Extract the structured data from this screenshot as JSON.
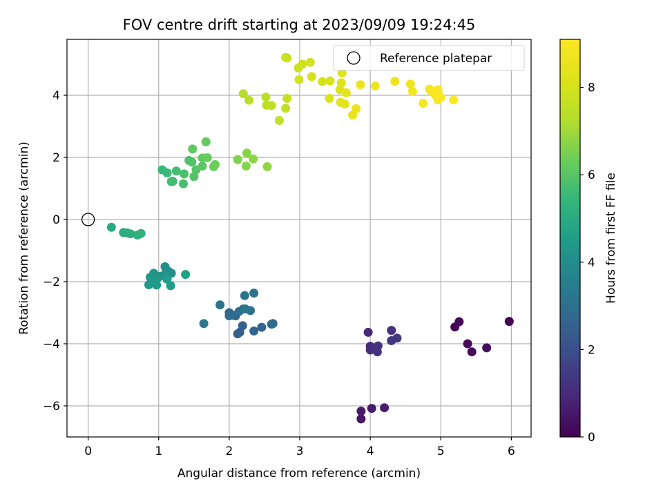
{
  "chart_data": {
    "type": "scatter",
    "title": "FOV centre drift starting at 2023/09/09 19:24:45",
    "xlabel": "Angular distance from reference (arcmin)",
    "ylabel": "Rotation from reference (arcmin)",
    "xlim": [
      -0.3,
      6.28
    ],
    "ylim": [
      -7.0,
      5.8
    ],
    "xticks": [
      0,
      1,
      2,
      3,
      4,
      5,
      6
    ],
    "yticks": [
      -6,
      -4,
      -2,
      0,
      2,
      4
    ],
    "xtick_labels": [
      "0",
      "1",
      "2",
      "3",
      "4",
      "5",
      "6"
    ],
    "ytick_labels": [
      "−6",
      "−4",
      "−2",
      "0",
      "2",
      "4"
    ],
    "grid": true,
    "legend": {
      "location": "upper right",
      "entries": [
        "Reference platepar"
      ]
    },
    "reference_point": {
      "x": 0,
      "y": 0
    },
    "colorbar": {
      "label": "Hours from first FF file",
      "colormap": "viridis",
      "range": [
        0,
        9.1
      ],
      "ticks": [
        0,
        2,
        4,
        6,
        8
      ],
      "tick_labels": [
        "0",
        "2",
        "4",
        "6",
        "8"
      ]
    },
    "points": [
      {
        "x": 5.97,
        "y": -3.28,
        "c": 0.05
      },
      {
        "x": 5.2,
        "y": -3.46,
        "c": 0.1
      },
      {
        "x": 5.26,
        "y": -3.29,
        "c": 0.15
      },
      {
        "x": 5.38,
        "y": -4.0,
        "c": 0.2
      },
      {
        "x": 5.44,
        "y": -4.26,
        "c": 0.25
      },
      {
        "x": 5.65,
        "y": -4.13,
        "c": 0.3
      },
      {
        "x": 3.87,
        "y": -6.42,
        "c": 0.5
      },
      {
        "x": 3.87,
        "y": -6.17,
        "c": 0.55
      },
      {
        "x": 4.02,
        "y": -6.08,
        "c": 0.6
      },
      {
        "x": 4.2,
        "y": -6.06,
        "c": 0.65
      },
      {
        "x": 3.97,
        "y": -3.63,
        "c": 1.0
      },
      {
        "x": 4.0,
        "y": -4.08,
        "c": 1.05
      },
      {
        "x": 4.0,
        "y": -4.2,
        "c": 1.1
      },
      {
        "x": 4.1,
        "y": -4.26,
        "c": 1.15
      },
      {
        "x": 4.11,
        "y": -4.07,
        "c": 1.2
      },
      {
        "x": 4.3,
        "y": -3.57,
        "c": 1.25
      },
      {
        "x": 4.3,
        "y": -3.9,
        "c": 1.3
      },
      {
        "x": 4.38,
        "y": -3.82,
        "c": 1.35
      },
      {
        "x": 2.09,
        "y": -3.1,
        "c": 2.4
      },
      {
        "x": 2.12,
        "y": -3.68,
        "c": 2.45
      },
      {
        "x": 2.15,
        "y": -3.63,
        "c": 2.5
      },
      {
        "x": 2.19,
        "y": -3.42,
        "c": 2.55
      },
      {
        "x": 2.35,
        "y": -3.59,
        "c": 2.6
      },
      {
        "x": 2.46,
        "y": -3.47,
        "c": 2.65
      },
      {
        "x": 2.6,
        "y": -3.37,
        "c": 2.7
      },
      {
        "x": 2.62,
        "y": -3.35,
        "c": 2.75
      },
      {
        "x": 2.0,
        "y": -3.0,
        "c": 2.8
      },
      {
        "x": 2.0,
        "y": -3.1,
        "c": 2.85
      },
      {
        "x": 2.06,
        "y": -3.08,
        "c": 2.9
      },
      {
        "x": 2.14,
        "y": -2.96,
        "c": 2.95
      },
      {
        "x": 2.2,
        "y": -2.88,
        "c": 3.0
      },
      {
        "x": 2.3,
        "y": -2.93,
        "c": 3.05
      },
      {
        "x": 2.22,
        "y": -2.45,
        "c": 3.1
      },
      {
        "x": 2.35,
        "y": -2.37,
        "c": 3.15
      },
      {
        "x": 1.87,
        "y": -2.75,
        "c": 3.2
      },
      {
        "x": 2.23,
        "y": -2.88,
        "c": 3.25
      },
      {
        "x": 1.64,
        "y": -3.35,
        "c": 3.3
      },
      {
        "x": 1.09,
        "y": -1.52,
        "c": 4.0
      },
      {
        "x": 1.14,
        "y": -1.67,
        "c": 4.05
      },
      {
        "x": 1.18,
        "y": -1.73,
        "c": 4.1
      },
      {
        "x": 1.08,
        "y": -1.78,
        "c": 4.15
      },
      {
        "x": 1.02,
        "y": -1.83,
        "c": 4.2
      },
      {
        "x": 0.93,
        "y": -1.73,
        "c": 4.25
      },
      {
        "x": 0.88,
        "y": -1.86,
        "c": 4.3
      },
      {
        "x": 0.97,
        "y": -1.92,
        "c": 4.35
      },
      {
        "x": 0.86,
        "y": -2.1,
        "c": 4.4
      },
      {
        "x": 0.92,
        "y": -2.0,
        "c": 4.45
      },
      {
        "x": 0.97,
        "y": -2.11,
        "c": 4.5
      },
      {
        "x": 1.12,
        "y": -1.92,
        "c": 4.55
      },
      {
        "x": 1.17,
        "y": -2.13,
        "c": 4.6
      },
      {
        "x": 1.38,
        "y": -1.77,
        "c": 4.65
      },
      {
        "x": 0.33,
        "y": -0.25,
        "c": 5.0
      },
      {
        "x": 0.5,
        "y": -0.42,
        "c": 5.05
      },
      {
        "x": 0.55,
        "y": -0.43,
        "c": 5.1
      },
      {
        "x": 0.6,
        "y": -0.46,
        "c": 5.15
      },
      {
        "x": 0.7,
        "y": -0.5,
        "c": 5.2
      },
      {
        "x": 0.75,
        "y": -0.45,
        "c": 5.25
      },
      {
        "x": 1.05,
        "y": 1.6,
        "c": 5.5
      },
      {
        "x": 1.12,
        "y": 1.5,
        "c": 5.55
      },
      {
        "x": 1.18,
        "y": 1.22,
        "c": 5.6
      },
      {
        "x": 1.2,
        "y": 1.23,
        "c": 5.65
      },
      {
        "x": 1.25,
        "y": 1.56,
        "c": 5.7
      },
      {
        "x": 1.35,
        "y": 1.15,
        "c": 5.75
      },
      {
        "x": 1.36,
        "y": 1.47,
        "c": 5.8
      },
      {
        "x": 1.43,
        "y": 1.9,
        "c": 5.85
      },
      {
        "x": 1.47,
        "y": 1.85,
        "c": 5.9
      },
      {
        "x": 1.5,
        "y": 1.38,
        "c": 5.95
      },
      {
        "x": 1.53,
        "y": 1.6,
        "c": 6.0
      },
      {
        "x": 1.62,
        "y": 1.72,
        "c": 6.05
      },
      {
        "x": 1.48,
        "y": 2.27,
        "c": 6.1
      },
      {
        "x": 1.62,
        "y": 1.98,
        "c": 6.15
      },
      {
        "x": 1.67,
        "y": 2.5,
        "c": 6.2
      },
      {
        "x": 1.69,
        "y": 1.99,
        "c": 6.25
      },
      {
        "x": 1.78,
        "y": 1.7,
        "c": 6.3
      },
      {
        "x": 1.8,
        "y": 1.77,
        "c": 6.35
      },
      {
        "x": 2.12,
        "y": 1.93,
        "c": 6.6
      },
      {
        "x": 2.24,
        "y": 1.72,
        "c": 6.65
      },
      {
        "x": 2.25,
        "y": 2.14,
        "c": 6.7
      },
      {
        "x": 2.34,
        "y": 1.95,
        "c": 6.75
      },
      {
        "x": 2.54,
        "y": 1.7,
        "c": 6.8
      },
      {
        "x": 2.2,
        "y": 4.05,
        "c": 7.3
      },
      {
        "x": 2.28,
        "y": 3.84,
        "c": 7.35
      },
      {
        "x": 2.52,
        "y": 3.94,
        "c": 7.4
      },
      {
        "x": 2.53,
        "y": 3.68,
        "c": 7.45
      },
      {
        "x": 2.6,
        "y": 3.67,
        "c": 7.5
      },
      {
        "x": 2.71,
        "y": 3.19,
        "c": 7.55
      },
      {
        "x": 2.8,
        "y": 3.58,
        "c": 7.6
      },
      {
        "x": 2.82,
        "y": 3.9,
        "c": 7.65
      },
      {
        "x": 2.8,
        "y": 5.22,
        "c": 7.7
      },
      {
        "x": 2.82,
        "y": 5.2,
        "c": 7.75
      },
      {
        "x": 2.98,
        "y": 4.88,
        "c": 7.8
      },
      {
        "x": 3.04,
        "y": 5.0,
        "c": 7.85
      },
      {
        "x": 3.15,
        "y": 5.06,
        "c": 7.9
      },
      {
        "x": 2.99,
        "y": 4.5,
        "c": 7.95
      },
      {
        "x": 3.17,
        "y": 4.6,
        "c": 8.0
      },
      {
        "x": 3.32,
        "y": 4.44,
        "c": 8.05
      },
      {
        "x": 3.43,
        "y": 4.46,
        "c": 8.1
      },
      {
        "x": 3.42,
        "y": 3.9,
        "c": 8.15
      },
      {
        "x": 3.57,
        "y": 4.18,
        "c": 8.2
      },
      {
        "x": 3.59,
        "y": 4.4,
        "c": 8.25
      },
      {
        "x": 3.6,
        "y": 4.72,
        "c": 8.3
      },
      {
        "x": 3.58,
        "y": 3.77,
        "c": 8.35
      },
      {
        "x": 3.64,
        "y": 3.72,
        "c": 8.4
      },
      {
        "x": 3.66,
        "y": 4.08,
        "c": 8.45
      },
      {
        "x": 3.75,
        "y": 3.36,
        "c": 8.5
      },
      {
        "x": 3.8,
        "y": 3.57,
        "c": 8.55
      },
      {
        "x": 3.86,
        "y": 4.34,
        "c": 8.6
      },
      {
        "x": 4.07,
        "y": 4.3,
        "c": 8.65
      },
      {
        "x": 4.35,
        "y": 4.45,
        "c": 8.7
      },
      {
        "x": 4.57,
        "y": 4.36,
        "c": 8.75
      },
      {
        "x": 4.6,
        "y": 4.13,
        "c": 8.8
      },
      {
        "x": 4.75,
        "y": 3.74,
        "c": 8.85
      },
      {
        "x": 4.84,
        "y": 4.2,
        "c": 8.9
      },
      {
        "x": 4.88,
        "y": 4.1,
        "c": 8.95
      },
      {
        "x": 4.94,
        "y": 3.96,
        "c": 9.0
      },
      {
        "x": 4.96,
        "y": 4.18,
        "c": 9.02
      },
      {
        "x": 4.97,
        "y": 4.0,
        "c": 9.04
      },
      {
        "x": 4.96,
        "y": 3.85,
        "c": 9.06
      },
      {
        "x": 5.0,
        "y": 3.93,
        "c": 9.08
      },
      {
        "x": 5.18,
        "y": 3.85,
        "c": 9.1
      }
    ]
  }
}
